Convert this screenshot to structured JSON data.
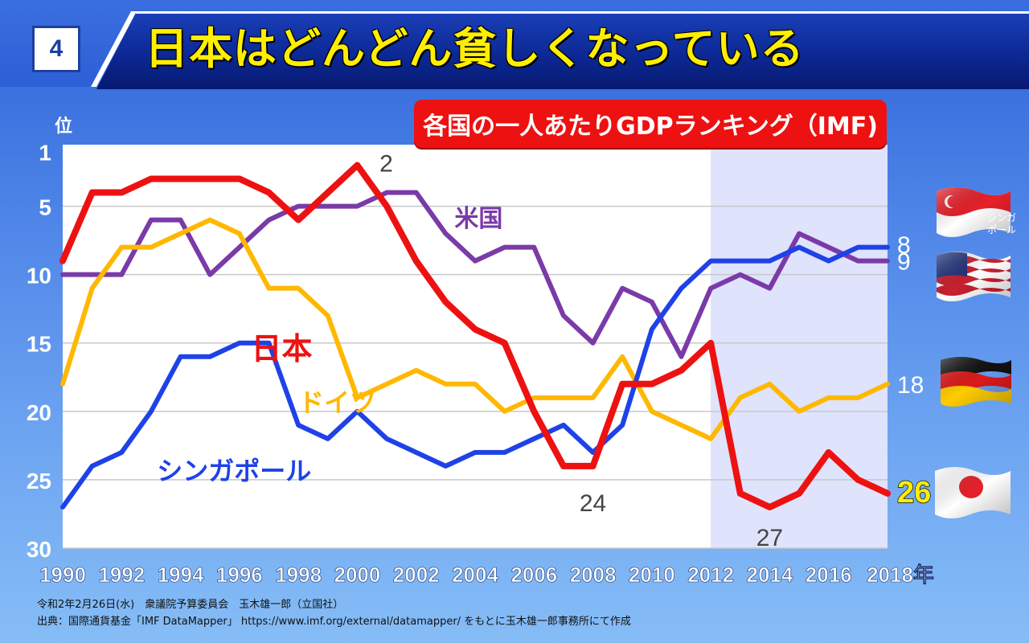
{
  "slide": {
    "number": "4",
    "title": "日本はどんどん貧しくなっている"
  },
  "subtitle": "各国の一人あたりGDPランキング（IMF)",
  "footer": {
    "date_line": "令和2年2月26日(水)　衆議院予算委員会　玉木雄一郎（立国社）",
    "source_line": "出典：国際通貨基金「IMF DataMapper」 https://www.imf.org/external/datamapper/ をもとに玉木雄一郎事務所にて作成"
  },
  "flags": {
    "singapore_label_1": "シンガ",
    "singapore_label_2": "ポール"
  },
  "chart_data": {
    "type": "line",
    "ylabel": "位",
    "xlabel": "",
    "x": [
      1990,
      1991,
      1992,
      1993,
      1994,
      1995,
      1996,
      1997,
      1998,
      1999,
      2000,
      2001,
      2002,
      2003,
      2004,
      2005,
      2006,
      2007,
      2008,
      2009,
      2010,
      2011,
      2012,
      2013,
      2014,
      2015,
      2016,
      2017,
      2018
    ],
    "xticks": [
      "1990",
      "1992",
      "1994",
      "1996",
      "1998",
      "2000",
      "2002",
      "2004",
      "2006",
      "2008",
      "2010",
      "2012",
      "2014",
      "2016",
      "2018年"
    ],
    "ylim": [
      1,
      30
    ],
    "yreversed": true,
    "yticks": [
      "1",
      "5",
      "10",
      "15",
      "20",
      "25",
      "30"
    ],
    "highlight_range": [
      2012,
      2018
    ],
    "grid": "horizontal",
    "series": [
      {
        "name": "米国",
        "color": "#7a3aa8",
        "label_color": "#7a3aa8",
        "values": [
          10,
          10,
          10,
          6,
          6,
          10,
          8,
          6,
          5,
          5,
          5,
          4,
          4,
          7,
          9,
          8,
          8,
          13,
          15,
          11,
          12,
          16,
          11,
          10,
          11,
          7,
          8,
          9,
          9
        ],
        "end_label": "9"
      },
      {
        "name": "ドイツ",
        "color": "#ffb800",
        "label_color": "#ffb800",
        "values": [
          18,
          11,
          8,
          8,
          7,
          6,
          7,
          11,
          11,
          13,
          19,
          18,
          17,
          18,
          18,
          20,
          19,
          19,
          19,
          16,
          20,
          21,
          22,
          19,
          18,
          20,
          19,
          19,
          18
        ],
        "end_label": "18"
      },
      {
        "name": "シンガポール",
        "color": "#1e42e8",
        "label_color": "#1e42e8",
        "values": [
          27,
          24,
          23,
          20,
          16,
          16,
          15,
          15,
          21,
          22,
          20,
          22,
          23,
          24,
          23,
          23,
          22,
          21,
          23,
          21,
          14,
          11,
          9,
          9,
          9,
          8,
          9,
          8,
          8
        ],
        "end_label": "8"
      },
      {
        "name": "日本",
        "color": "#ee1111",
        "label_color": "#ee1111",
        "values": [
          9,
          4,
          4,
          3,
          3,
          3,
          3,
          4,
          6,
          4,
          2,
          5,
          9,
          12,
          14,
          15,
          20,
          24,
          24,
          18,
          18,
          17,
          15,
          26,
          27,
          26,
          23,
          25,
          26
        ],
        "end_label": "26"
      }
    ],
    "annotations": [
      {
        "text": "2",
        "x": 2000,
        "y": 2
      },
      {
        "text": "24",
        "x": 2008,
        "y": 24
      },
      {
        "text": "27",
        "x": 2014,
        "y": 27
      }
    ]
  }
}
